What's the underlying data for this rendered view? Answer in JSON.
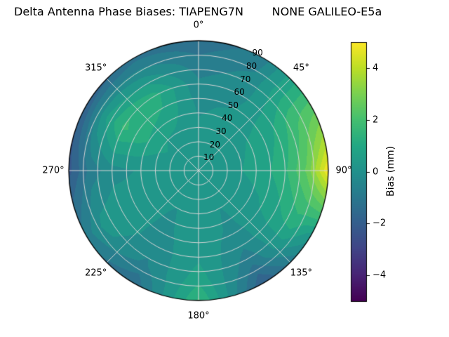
{
  "title": "Delta Antenna Phase Biases: TIAPENG7N        NONE GALILEO-E5a",
  "colorbar": {
    "label": "Bias (mm)",
    "ticks": [
      {
        "value": 4,
        "label": "4"
      },
      {
        "value": 2,
        "label": "2"
      },
      {
        "value": 0,
        "label": "0"
      },
      {
        "value": -2,
        "label": "−2"
      },
      {
        "value": -4,
        "label": "−4"
      }
    ]
  },
  "polar": {
    "angular_ticks": [
      {
        "angle_deg": 0,
        "label": "0°"
      },
      {
        "angle_deg": 45,
        "label": "45°"
      },
      {
        "angle_deg": 90,
        "label": "90°"
      },
      {
        "angle_deg": 135,
        "label": "135°"
      },
      {
        "angle_deg": 180,
        "label": "180°"
      },
      {
        "angle_deg": 225,
        "label": "225°"
      },
      {
        "angle_deg": 270,
        "label": "270°"
      },
      {
        "angle_deg": 315,
        "label": "315°"
      }
    ],
    "radial_ticks": [
      {
        "value": 10,
        "label": "10"
      },
      {
        "value": 20,
        "label": "20"
      },
      {
        "value": 30,
        "label": "30"
      },
      {
        "value": 40,
        "label": "40"
      },
      {
        "value": 50,
        "label": "50"
      },
      {
        "value": 60,
        "label": "60"
      },
      {
        "value": 70,
        "label": "70"
      },
      {
        "value": 80,
        "label": "80"
      },
      {
        "value": 90,
        "label": "90"
      }
    ]
  },
  "chart_data": {
    "type": "heatmap",
    "projection": "polar",
    "title": "Delta Antenna Phase Biases: TIAPENG7N        NONE GALILEO-E5a",
    "colorbar_label": "Bias (mm)",
    "colormap": "viridis",
    "clim": [
      -5,
      5
    ],
    "contour_step_mm": 0.5,
    "azimuth_deg": [
      0,
      30,
      60,
      90,
      120,
      150,
      180,
      210,
      240,
      270,
      300,
      330,
      360
    ],
    "zenith_deg": [
      0,
      15,
      30,
      45,
      60,
      75,
      90
    ],
    "bias_mm": [
      [
        0.2,
        0.2,
        0.1,
        -0.1,
        -0.4,
        -0.8,
        -1.4
      ],
      [
        0.2,
        0.3,
        0.2,
        0.1,
        -0.2,
        -0.4,
        -0.8
      ],
      [
        0.2,
        0.3,
        0.4,
        0.6,
        1.0,
        1.8,
        2.2
      ],
      [
        0.2,
        0.3,
        0.5,
        0.8,
        1.4,
        2.6,
        5.0
      ],
      [
        0.2,
        0.2,
        0.2,
        0.4,
        0.8,
        1.2,
        0.3
      ],
      [
        0.2,
        0.1,
        0.0,
        -0.1,
        -0.4,
        -1.0,
        -2.0
      ],
      [
        0.2,
        0.2,
        0.2,
        0.3,
        0.4,
        0.8,
        1.6
      ],
      [
        0.2,
        0.1,
        0.0,
        -0.1,
        -0.3,
        -0.6,
        -1.4
      ],
      [
        0.2,
        0.1,
        0.1,
        0.2,
        0.4,
        0.2,
        -0.8
      ],
      [
        0.2,
        0.2,
        0.1,
        0.0,
        -0.2,
        -0.8,
        -2.2
      ],
      [
        0.2,
        0.3,
        0.6,
        1.2,
        1.6,
        0.4,
        -2.0
      ],
      [
        0.2,
        0.3,
        0.4,
        0.9,
        1.2,
        0.0,
        -1.2
      ],
      [
        0.2,
        0.2,
        0.1,
        -0.1,
        -0.4,
        -0.8,
        -1.4
      ]
    ]
  }
}
